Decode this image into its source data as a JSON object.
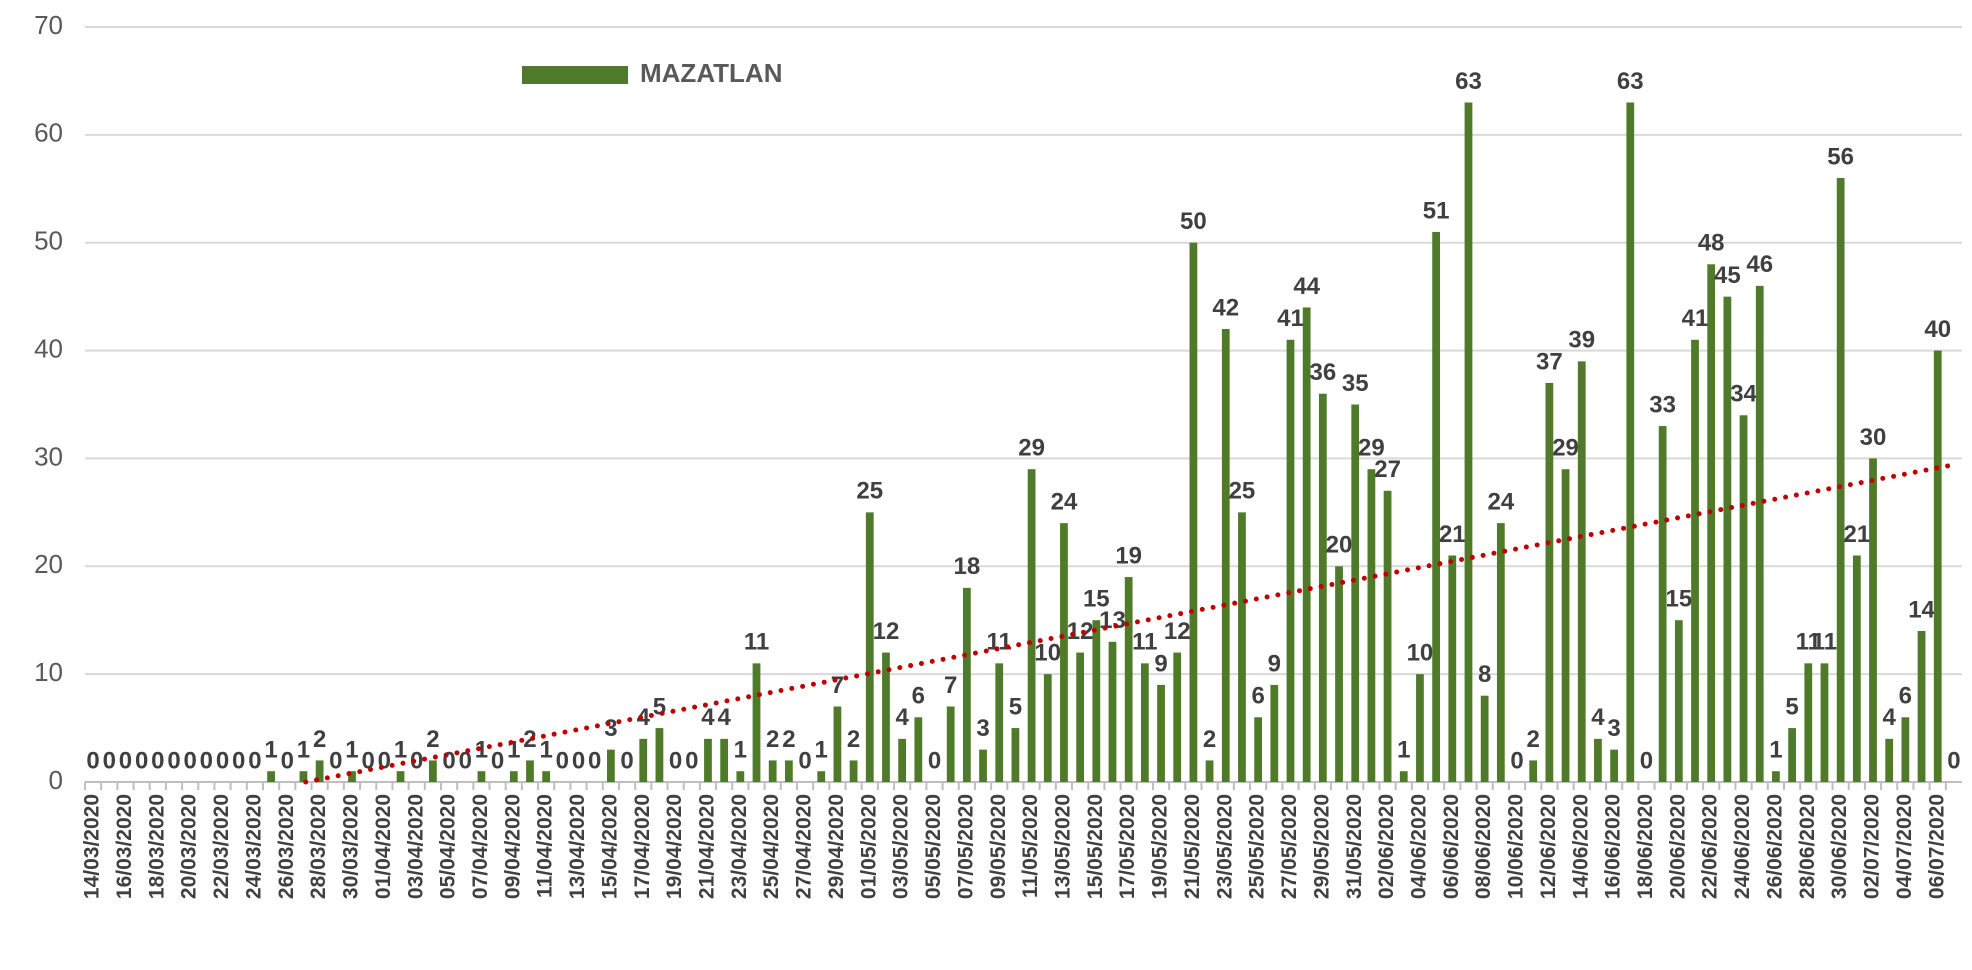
{
  "chart_data": {
    "type": "bar",
    "categories": [
      "14/03/2020",
      null,
      "16/03/2020",
      null,
      "18/03/2020",
      null,
      "20/03/2020",
      null,
      "22/03/2020",
      null,
      "24/03/2020",
      null,
      "26/03/2020",
      null,
      "28/03/2020",
      null,
      "30/03/2020",
      null,
      "01/04/2020",
      null,
      "03/04/2020",
      null,
      "05/04/2020",
      null,
      "07/04/2020",
      null,
      "09/04/2020",
      null,
      "11/04/2020",
      null,
      "13/04/2020",
      null,
      "15/04/2020",
      null,
      "17/04/2020",
      null,
      "19/04/2020",
      null,
      "21/04/2020",
      null,
      "23/04/2020",
      null,
      "25/04/2020",
      null,
      "27/04/2020",
      null,
      "29/04/2020",
      null,
      "01/05/2020",
      null,
      "03/05/2020",
      null,
      "05/05/2020",
      null,
      "07/05/2020",
      null,
      "09/05/2020",
      null,
      "11/05/2020",
      null,
      "13/05/2020",
      null,
      "15/05/2020",
      null,
      "17/05/2020",
      null,
      "19/05/2020",
      null,
      "21/05/2020",
      null,
      "23/05/2020",
      null,
      "25/05/2020",
      null,
      "27/05/2020",
      null,
      "29/05/2020",
      null,
      "31/05/2020",
      null,
      "02/06/2020",
      null,
      "04/06/2020",
      null,
      "06/06/2020",
      null,
      "08/06/2020",
      null,
      "10/06/2020",
      null,
      "12/06/2020",
      null,
      "14/06/2020",
      null,
      "16/06/2020",
      null,
      "18/06/2020",
      null,
      "20/06/2020",
      null,
      "22/06/2020",
      null,
      "24/06/2020",
      null,
      "26/06/2020",
      null,
      "28/06/2020",
      null,
      "30/06/2020",
      null,
      "02/07/2020",
      null,
      "04/07/2020",
      null,
      "06/07/2020",
      null
    ],
    "series": [
      {
        "name": "MAZATLAN",
        "color": "#4e7a2a",
        "values": [
          0,
          0,
          0,
          0,
          0,
          0,
          0,
          0,
          0,
          0,
          0,
          1,
          0,
          1,
          2,
          0,
          1,
          0,
          0,
          1,
          0,
          2,
          0,
          0,
          1,
          0,
          1,
          2,
          1,
          0,
          0,
          0,
          3,
          0,
          4,
          5,
          0,
          0,
          4,
          4,
          1,
          11,
          2,
          2,
          0,
          1,
          7,
          2,
          25,
          12,
          4,
          6,
          0,
          7,
          18,
          3,
          11,
          5,
          29,
          10,
          24,
          12,
          15,
          13,
          19,
          11,
          9,
          12,
          50,
          2,
          42,
          25,
          6,
          9,
          41,
          44,
          36,
          20,
          35,
          29,
          27,
          1,
          10,
          51,
          21,
          63,
          8,
          24,
          0,
          2,
          37,
          29,
          39,
          4,
          3,
          63,
          0,
          33,
          15,
          41,
          48,
          45,
          34,
          46,
          1,
          5,
          11,
          11,
          56,
          21,
          30,
          4,
          6,
          14,
          40,
          0
        ]
      }
    ],
    "ylim": [
      0,
      70
    ],
    "yticks": [
      0,
      10,
      20,
      30,
      40,
      50,
      60,
      70
    ],
    "grid": true,
    "legend": "top-left",
    "trendline": "linear",
    "trendline_color": "#c00000"
  }
}
